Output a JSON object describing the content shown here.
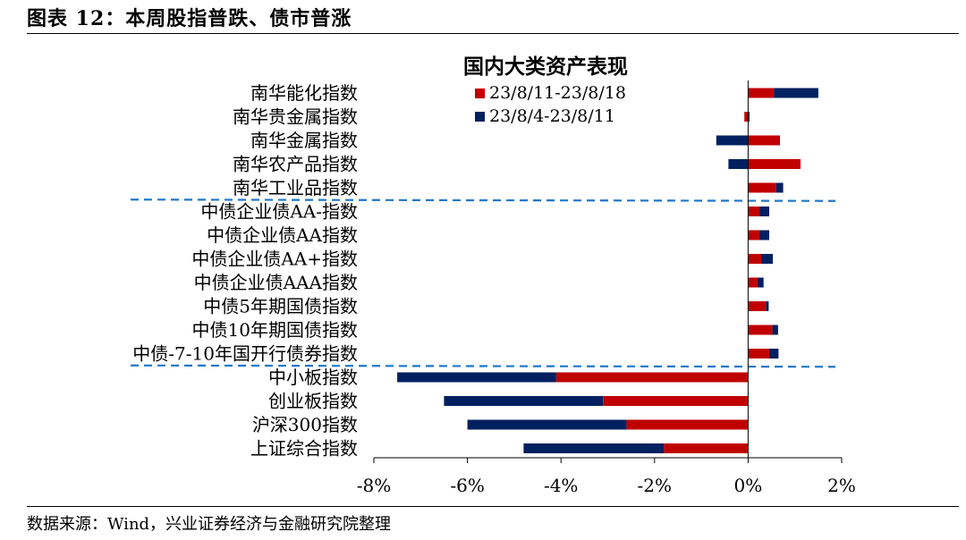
{
  "figure": {
    "title": "图表 12：本周股指普跌、债市普涨",
    "source": "数据来源：Wind，兴业证券经济与金融研究院整理"
  },
  "chart_data": {
    "type": "bar",
    "orientation": "horizontal",
    "stacked": true,
    "title": "国内大类资产表现",
    "categories": [
      "南华能化指数",
      "南华贵金属指数",
      "南华金属指数",
      "南华农产品指数",
      "南华工业品指数",
      "中债企业债AA-指数",
      "中债企业债AA指数",
      "中债企业债AA+指数",
      "中债企业债AAA指数",
      "中债5年期国债指数",
      "中债10年期国债指数",
      "中债-7-10年国开行债券指数",
      "中小板指数",
      "创业板指数",
      "沪深300指数",
      "上证综合指数"
    ],
    "series": [
      {
        "name": "23/8/11-23/8/18",
        "color": "#c00000",
        "values": [
          0.55,
          -0.08,
          0.68,
          1.12,
          0.6,
          0.25,
          0.25,
          0.28,
          0.2,
          0.38,
          0.52,
          0.45,
          -4.1,
          -3.1,
          -2.6,
          -1.8
        ]
      },
      {
        "name": "23/8/4-23/8/11",
        "color": "#002060",
        "values": [
          0.95,
          0.03,
          -0.68,
          -0.42,
          0.15,
          0.2,
          0.2,
          0.25,
          0.13,
          0.06,
          0.12,
          0.2,
          -3.4,
          -3.4,
          -3.4,
          -3.0
        ]
      }
    ],
    "xlim": [
      -8,
      2
    ],
    "xticks": [
      "-8%",
      "-6%",
      "-4%",
      "-2%",
      "0%",
      "2%"
    ],
    "xtick_values": [
      -8,
      -6,
      -4,
      -2,
      0,
      2
    ],
    "separators_after": [
      4,
      11
    ],
    "legend_position": "top-right",
    "grid": false
  }
}
